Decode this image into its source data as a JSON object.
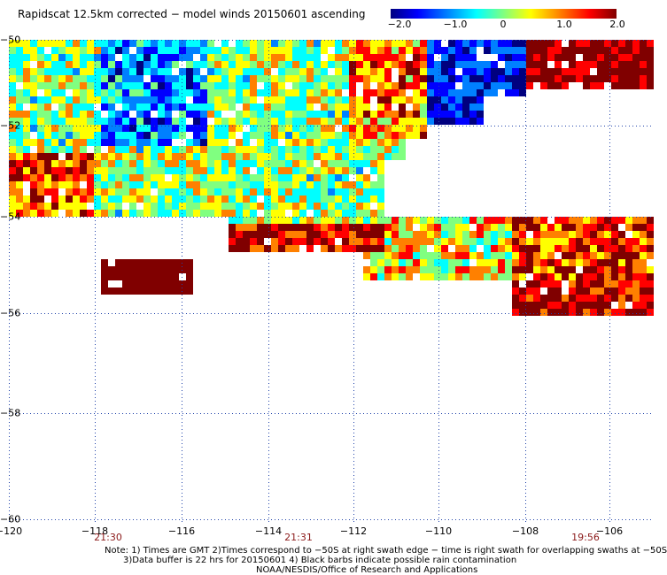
{
  "title": "Rapidscat 12.5km corrected − model winds 20150601 ascending",
  "colorbar": {
    "labels": [
      "−2.0",
      "−1.0",
      "0",
      "1.0",
      "2.0"
    ],
    "min": -2.0,
    "max": 2.0,
    "colors": [
      "#00007f",
      "#0000ff",
      "#0080ff",
      "#00ffff",
      "#80ff80",
      "#ffff00",
      "#ff8000",
      "#ff0000",
      "#800000"
    ]
  },
  "axes": {
    "lat_labels": [
      "−50",
      "−52",
      "−54",
      "−56",
      "−58",
      "−60"
    ],
    "lon_labels": [
      "−120",
      "−118",
      "−116",
      "−114",
      "−112",
      "−110",
      "−108",
      "−106"
    ],
    "lat_range": [
      -50,
      -60
    ],
    "lon_range": [
      -120,
      -105.1
    ],
    "grid": "dotted"
  },
  "times": [
    "21:30",
    "21:31",
    "19:56"
  ],
  "notes": {
    "line1": "Note: 1) Times are GMT 2)Times correspond to −50S at right swath edge − time is right swath for overlapping swaths at −50S",
    "line2": "3)Data buffer is 22 hrs for 20150601 4) Black barbs indicate possible rain contamination",
    "credit": "NOAA/NESDIS/Office of Research and Applications"
  }
}
